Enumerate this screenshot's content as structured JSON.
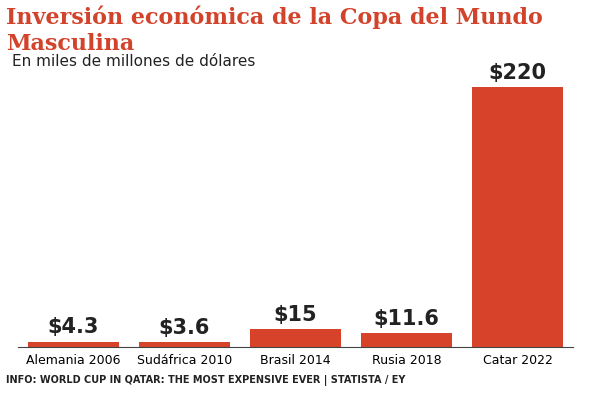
{
  "chart_data": {
    "type": "bar",
    "title": "Inversión económica de la Copa del Mundo Masculina",
    "subtitle": "En miles de millones de dólares",
    "source": "INFO: WORLD CUP IN QATAR: THE MOST EXPENSIVE EVER | STATISTA / EY",
    "categories": [
      "Alemania 2006",
      "Sudáfrica 2010",
      "Brasil 2014",
      "Rusia 2018",
      "Catar 2022"
    ],
    "values": [
      4.3,
      3.6,
      15,
      11.6,
      220
    ],
    "value_labels": [
      "$4.3",
      "$3.6",
      "$15",
      "$11.6",
      "$220"
    ],
    "data_labels": true,
    "color": "#d7432a",
    "ylim": [
      0,
      220
    ],
    "tick_labels": "x",
    "grid": false
  }
}
